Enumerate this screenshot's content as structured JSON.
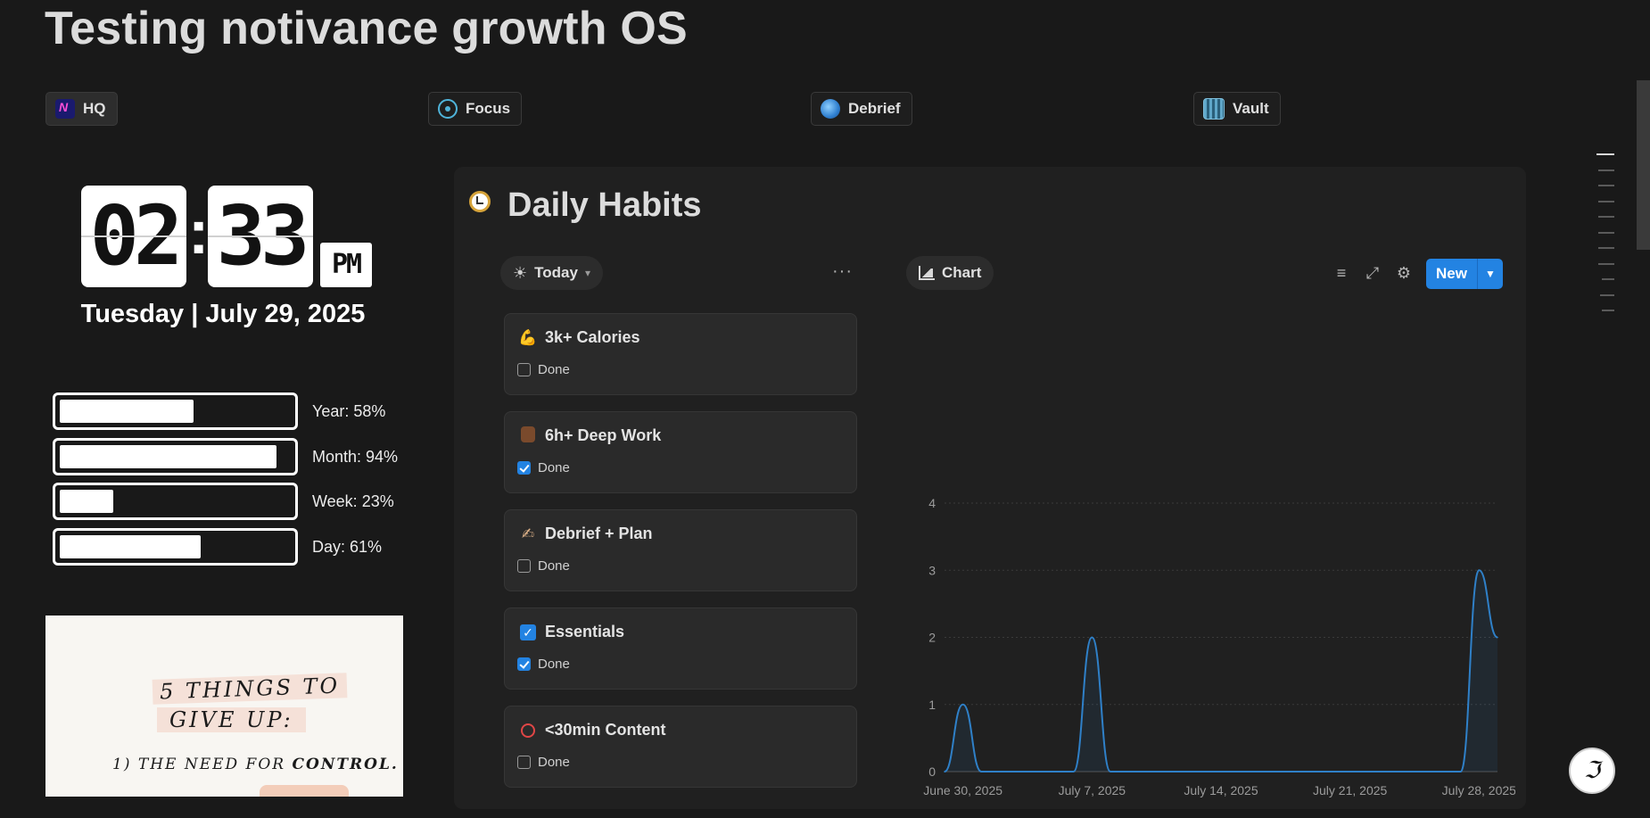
{
  "page": {
    "title": "Testing notivance growth OS"
  },
  "nav": [
    {
      "label": "HQ",
      "icon": "notivance-logo-icon"
    },
    {
      "label": "Focus",
      "icon": "target-icon"
    },
    {
      "label": "Debrief",
      "icon": "magnifier-icon"
    },
    {
      "label": "Vault",
      "icon": "vault-icon"
    }
  ],
  "clock": {
    "hours": "02",
    "minutes": "33",
    "separator": ":",
    "ampm": "PM",
    "date": "Tuesday | July 29, 2025"
  },
  "progress": [
    {
      "label": "Year: 58%",
      "value": 58
    },
    {
      "label": "Month: 94%",
      "value": 94
    },
    {
      "label": "Week: 23%",
      "value": 23
    },
    {
      "label": "Day: 61%",
      "value": 61
    }
  ],
  "quote": {
    "line1": "5 THINGS TO",
    "line2": "GIVE UP:",
    "line3_a": "1) THE NEED FOR",
    "line3_b": "CONTROL."
  },
  "habits_panel": {
    "title": "Daily Habits",
    "view_label": "Today",
    "chart_view_label": "Chart",
    "more": "···",
    "new_label": "New",
    "items": [
      {
        "name": "3k+ Calories",
        "emoji": "💪",
        "done_label": "Done",
        "done": false
      },
      {
        "name": "6h+ Deep Work",
        "emoji": "👨‍💻",
        "done_label": "Done",
        "done": true
      },
      {
        "name": "Debrief + Plan",
        "emoji": "✍",
        "done_label": "Done",
        "done": false
      },
      {
        "name": "Essentials",
        "emoji": "☑",
        "done_label": "Done",
        "done": true
      },
      {
        "name": "<30min Content",
        "emoji": "📵",
        "done_label": "Done",
        "done": false
      }
    ]
  },
  "chart_data": {
    "type": "line",
    "x_ticks": [
      "June 30, 2025",
      "July 7, 2025",
      "July 14, 2025",
      "July 21, 2025",
      "July 28, 2025"
    ],
    "x": [
      "2025-06-29",
      "2025-06-30",
      "2025-07-01",
      "2025-07-02",
      "2025-07-03",
      "2025-07-04",
      "2025-07-05",
      "2025-07-06",
      "2025-07-07",
      "2025-07-08",
      "2025-07-09",
      "2025-07-10",
      "2025-07-11",
      "2025-07-12",
      "2025-07-13",
      "2025-07-14",
      "2025-07-15",
      "2025-07-16",
      "2025-07-17",
      "2025-07-18",
      "2025-07-19",
      "2025-07-20",
      "2025-07-21",
      "2025-07-22",
      "2025-07-23",
      "2025-07-24",
      "2025-07-25",
      "2025-07-26",
      "2025-07-27",
      "2025-07-28",
      "2025-07-29"
    ],
    "values": [
      0,
      1,
      0,
      0,
      0,
      0,
      0,
      0,
      2,
      0,
      0,
      0,
      0,
      0,
      0,
      0,
      0,
      0,
      0,
      0,
      0,
      0,
      0,
      0,
      0,
      0,
      0,
      0,
      0,
      3,
      2
    ],
    "ylim": [
      0,
      4
    ],
    "y_ticks": [
      0,
      1,
      2,
      3,
      4
    ],
    "grid": true,
    "line_color": "#2f80c8"
  }
}
